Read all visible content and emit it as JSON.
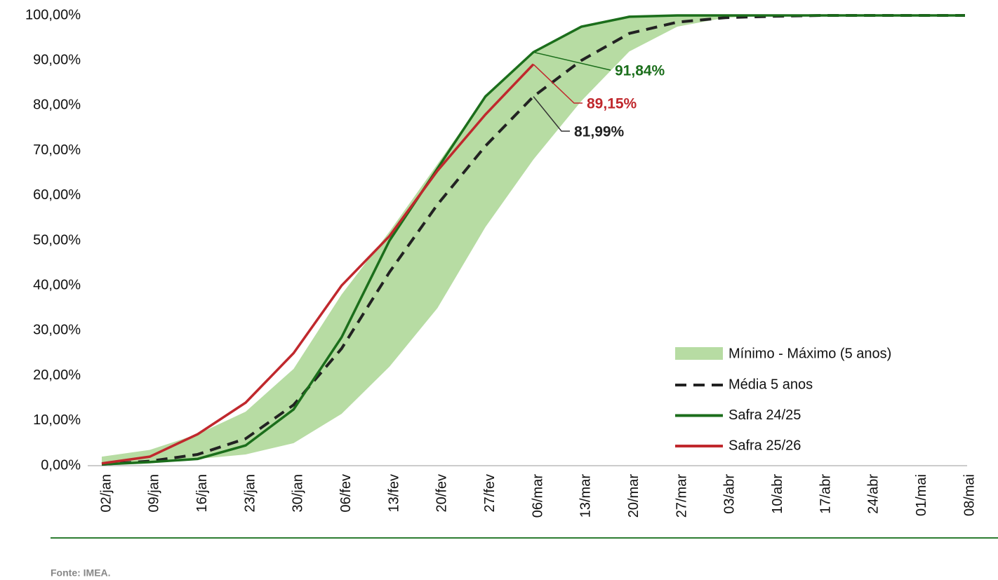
{
  "chart_data": {
    "type": "line",
    "categories": [
      "02/jan",
      "09/jan",
      "16/jan",
      "23/jan",
      "30/jan",
      "06/fev",
      "13/fev",
      "20/fev",
      "27/fev",
      "06/mar",
      "13/mar",
      "20/mar",
      "27/mar",
      "03/abr",
      "10/abr",
      "17/abr",
      "24/abr",
      "01/mai",
      "08/mai"
    ],
    "ylim": [
      0,
      100
    ],
    "yticks": [
      {
        "value": 0,
        "label": "0,00%"
      },
      {
        "value": 10,
        "label": "10,00%"
      },
      {
        "value": 20,
        "label": "20,00%"
      },
      {
        "value": 30,
        "label": "30,00%"
      },
      {
        "value": 40,
        "label": "40,00%"
      },
      {
        "value": 50,
        "label": "50,00%"
      },
      {
        "value": 60,
        "label": "60,00%"
      },
      {
        "value": 70,
        "label": "70,00%"
      },
      {
        "value": 80,
        "label": "80,00%"
      },
      {
        "value": 90,
        "label": "90,00%"
      },
      {
        "value": 100,
        "label": "100,00%"
      }
    ],
    "grid": false,
    "legend": "lower-right",
    "band": {
      "name": "Mínimo - Máximo (5 anos)",
      "color": "#b7dca3",
      "lower": [
        0,
        0.5,
        1.5,
        2.5,
        5,
        11.5,
        22,
        35,
        53,
        68,
        81,
        92,
        97.5,
        99.5,
        100,
        100,
        100,
        100,
        100
      ],
      "upper": [
        2,
        3.5,
        7,
        12,
        21.5,
        38,
        52,
        67,
        82,
        92,
        97.5,
        100,
        100,
        100,
        100,
        100,
        100,
        100,
        100
      ]
    },
    "series": [
      {
        "name": "Média 5 anos",
        "color": "#222222",
        "dashed": true,
        "values": [
          0.3,
          1,
          2.5,
          6,
          13.5,
          26,
          43,
          58,
          71,
          81.99,
          90,
          96,
          98.5,
          99.5,
          99.8,
          100,
          100,
          100,
          100
        ],
        "value_labels": [
          null,
          null,
          null,
          null,
          null,
          null,
          null,
          null,
          null,
          "81,99%",
          null,
          null,
          null,
          null,
          null,
          null,
          null,
          null,
          null
        ]
      },
      {
        "name": "Safra 24/25",
        "color": "#1b6e1b",
        "values": [
          0.3,
          0.8,
          1.5,
          4.5,
          12.5,
          28.5,
          50,
          66,
          82,
          91.84,
          97.5,
          99.7,
          100,
          100,
          100,
          100,
          100,
          100,
          100
        ],
        "value_labels": [
          null,
          null,
          null,
          null,
          null,
          null,
          null,
          null,
          null,
          "91,84%",
          null,
          null,
          null,
          null,
          null,
          null,
          null,
          null,
          null
        ]
      },
      {
        "name": "Safra 25/26",
        "color": "#c0282d",
        "values": [
          0.5,
          2,
          7,
          14,
          25,
          40,
          51,
          65.5,
          78,
          89.15,
          null,
          null,
          null,
          null,
          null,
          null,
          null,
          null,
          null
        ],
        "value_labels": [
          null,
          null,
          null,
          null,
          null,
          null,
          null,
          null,
          null,
          "89,15%",
          null,
          null,
          null,
          null,
          null,
          null,
          null,
          null,
          null
        ]
      }
    ],
    "source": "Fonte: IMEA."
  }
}
